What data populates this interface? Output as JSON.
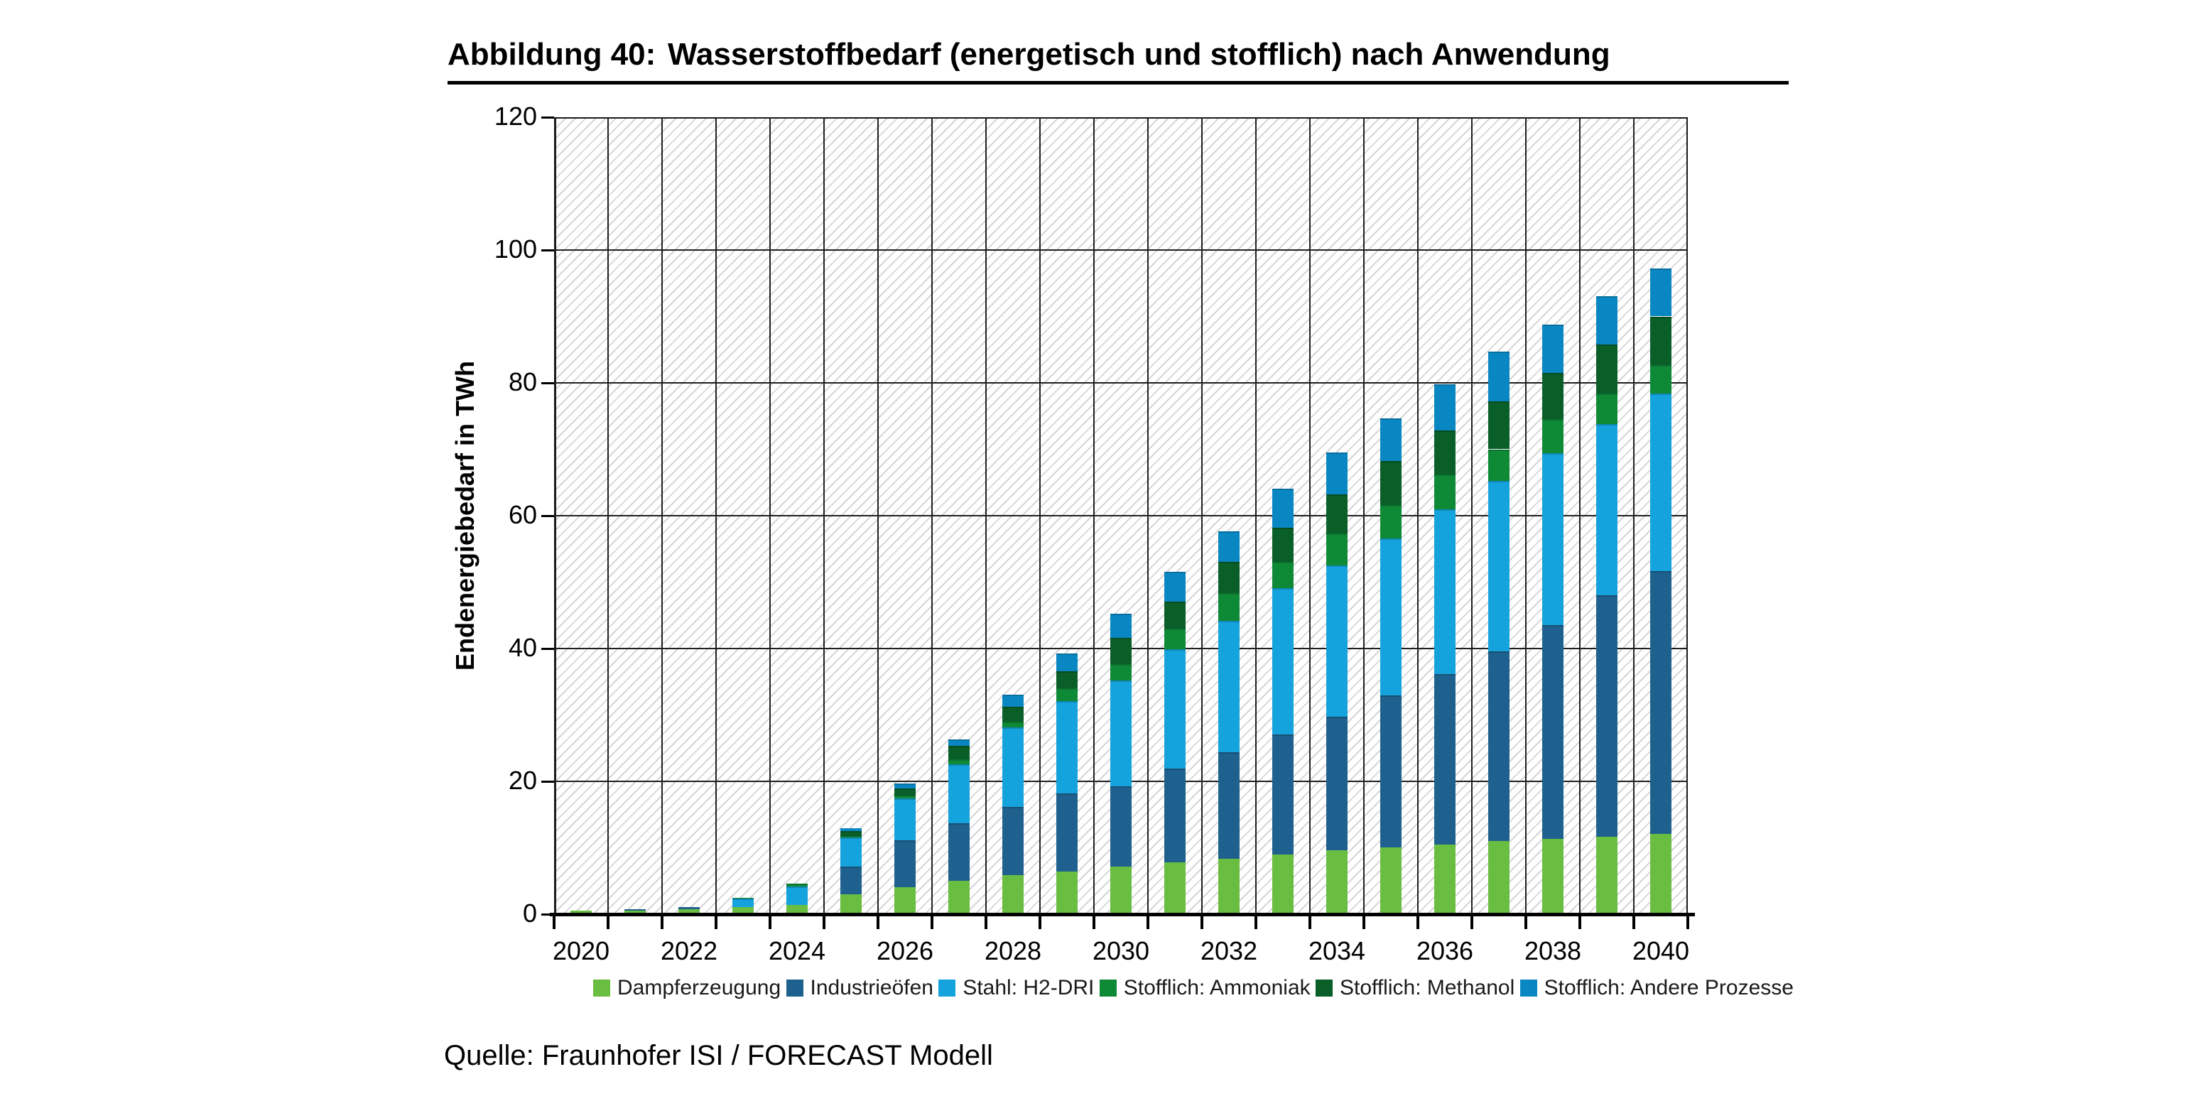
{
  "figure": {
    "label": "Abbildung 40:",
    "title": "Wasserstoffbedarf (energetisch und stofflich) nach Anwendung"
  },
  "source": "Quelle: Fraunhofer ISI / FORECAST Modell",
  "chart_data": {
    "type": "bar",
    "stacked": true,
    "title": "Wasserstoffbedarf (energetisch und stofflich) nach Anwendung",
    "xlabel": "",
    "ylabel": "Endenergiebedarf in TWh",
    "ylim": [
      0,
      120
    ],
    "ytick_step": 20,
    "grid": true,
    "background_hatch": true,
    "legend_position": "bottom",
    "categories": [
      "2020",
      "2021",
      "2022",
      "2023",
      "2024",
      "2025",
      "2026",
      "2027",
      "2028",
      "2029",
      "2030",
      "2031",
      "2032",
      "2033",
      "2034",
      "2035",
      "2036",
      "2037",
      "2038",
      "2039",
      "2040"
    ],
    "x_labels_every": 2,
    "series": [
      {
        "name": "Dampferzeugung",
        "color": "#69BE41",
        "values": [
          0.5,
          0.5,
          0.8,
          1.1,
          1.4,
          3.0,
          4.1,
          5.0,
          5.9,
          6.4,
          7.2,
          7.8,
          8.3,
          9.0,
          9.6,
          10.1,
          10.5,
          11.0,
          11.3,
          11.7,
          12.1
        ]
      },
      {
        "name": "Industrieöfen",
        "color": "#1F618E",
        "values": [
          0,
          0.2,
          0.3,
          0,
          0,
          4.2,
          7.0,
          8.7,
          10.2,
          11.8,
          12.1,
          14.1,
          16.1,
          18.1,
          20.1,
          22.8,
          25.7,
          28.6,
          32.2,
          36.3,
          39.6
        ]
      },
      {
        "name": "Stahl: H2-DRI",
        "color": "#15A3DD",
        "values": [
          0,
          0,
          0,
          1.2,
          2.8,
          4.3,
          6.3,
          8.9,
          12.0,
          13.9,
          15.9,
          18.0,
          19.8,
          22.0,
          22.8,
          23.7,
          24.8,
          25.6,
          25.9,
          25.8,
          26.7
        ]
      },
      {
        "name": "Stofflich: Ammoniak",
        "color": "#0E8A37",
        "values": [
          0,
          0,
          0,
          0.2,
          0.25,
          0.2,
          0.4,
          0.7,
          0.9,
          1.9,
          2.4,
          3.1,
          4.1,
          4.0,
          4.8,
          5.0,
          5.2,
          4.8,
          5.1,
          4.6,
          4.3
        ]
      },
      {
        "name": "Stofflich: Methanol",
        "color": "#0A5F28",
        "values": [
          0,
          0,
          0,
          0,
          0.15,
          0.8,
          1.1,
          2.0,
          2.2,
          2.6,
          4.0,
          4.1,
          4.7,
          5.1,
          5.9,
          6.6,
          6.6,
          7.2,
          7.0,
          7.4,
          7.3
        ]
      },
      {
        "name": "Stofflich: Andere Prozesse",
        "color": "#0987C2",
        "values": [
          0,
          0,
          0,
          0,
          0,
          0.4,
          0.8,
          1.0,
          1.8,
          2.7,
          3.6,
          4.4,
          4.7,
          5.9,
          6.3,
          6.5,
          7.0,
          7.5,
          7.3,
          7.3,
          7.2
        ]
      }
    ],
    "totals": [
      0.5,
      0.7,
      1.1,
      2.5,
      4.6,
      12.9,
      19.7,
      26.3,
      33.0,
      39.3,
      45.2,
      51.5,
      57.7,
      64.1,
      69.5,
      74.7,
      79.8,
      84.7,
      88.8,
      93.1,
      97.2
    ]
  },
  "colors": {
    "gridline": "#1f1f1f",
    "axis": "#000000",
    "hatch": "#d6d6d6",
    "background": "#ffffff"
  }
}
